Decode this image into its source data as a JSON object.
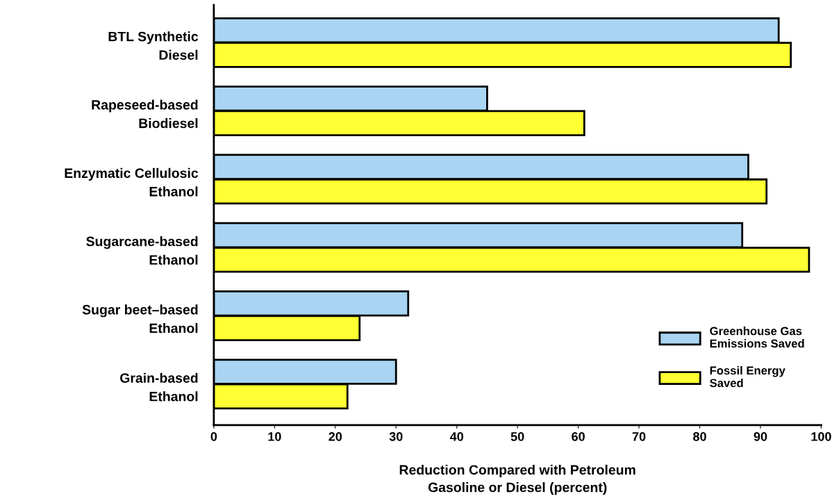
{
  "chart_data": {
    "type": "bar",
    "orientation": "horizontal",
    "xlabel": "Reduction Compared with Petroleum\nGasoline or Diesel (percent)",
    "categories": [
      "BTL Synthetic\nDiesel",
      "Rapeseed-based\nBiodiesel",
      "Enzymatic Cellulosic\nEthanol",
      "Sugarcane-based\nEthanol",
      "Sugar beet–based\nEthanol",
      "Grain-based\nEthanol"
    ],
    "series": [
      {
        "name": "Greenhouse Gas\nEmissions Saved",
        "color": "#a9d5f2",
        "values": [
          93,
          45,
          88,
          87,
          32,
          30
        ]
      },
      {
        "name": "Fossil Energy\nSaved",
        "color": "#ffff33",
        "values": [
          95,
          61,
          91,
          98,
          24,
          22
        ]
      }
    ],
    "xlim": [
      0,
      100
    ],
    "xticks": [
      0,
      10,
      20,
      30,
      40,
      50,
      60,
      70,
      80,
      90,
      100
    ],
    "grid": false,
    "legend": "bottom right"
  }
}
